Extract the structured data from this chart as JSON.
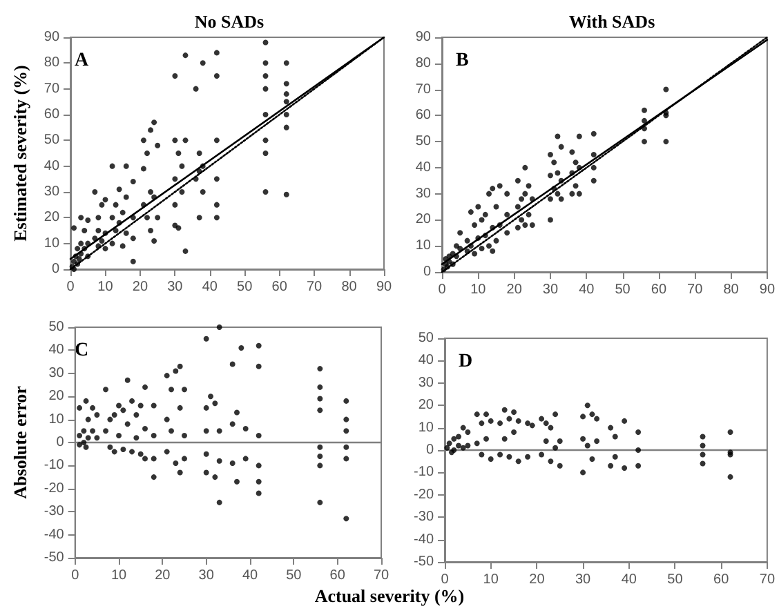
{
  "chart_data": [
    {
      "type": "scatter",
      "title": "No SADs",
      "ylabel": "Estimated severity (%)",
      "annotations": [
        "A"
      ],
      "xlim": [
        0,
        90
      ],
      "ylim": [
        0,
        90
      ],
      "xticks": [
        0,
        10,
        20,
        30,
        40,
        50,
        60,
        70,
        80,
        90
      ],
      "yticks": [
        0,
        10,
        20,
        30,
        40,
        50,
        60,
        70,
        80,
        90
      ],
      "grid": false,
      "marker": "circle",
      "series": [
        {
          "color": "#000000",
          "x": [
            0.5,
            1,
            1,
            1.5,
            2,
            2,
            2.5,
            3,
            3,
            3,
            1,
            4,
            4,
            5,
            5,
            5,
            7,
            7,
            8,
            8,
            8,
            9,
            9,
            10,
            10,
            10,
            12,
            12,
            12,
            13,
            13,
            14,
            14,
            15,
            15,
            16,
            16,
            16,
            18,
            18,
            18,
            18,
            21,
            21,
            21,
            22,
            22,
            23,
            23,
            23,
            24,
            24,
            24,
            25,
            25,
            30,
            30,
            30,
            30,
            30,
            31,
            31,
            32,
            32,
            33,
            33,
            33,
            36,
            36,
            37,
            37,
            37,
            38,
            38,
            38,
            42,
            42,
            42,
            42,
            42,
            42,
            56,
            56,
            56,
            56,
            56,
            56,
            56,
            56,
            62,
            62,
            62,
            62,
            62,
            62,
            62
          ],
          "values": [
            1,
            3,
            0,
            5,
            2,
            8,
            4,
            10,
            6,
            20,
            16,
            8,
            15,
            10,
            5,
            19,
            12,
            30,
            9,
            15,
            20,
            11,
            25,
            14,
            8,
            27,
            20,
            40,
            10,
            15,
            25,
            18,
            31,
            9,
            22,
            40,
            28,
            14,
            3,
            20,
            34,
            12,
            50,
            25,
            39,
            45,
            20,
            30,
            54,
            15,
            57,
            11,
            28,
            48,
            20,
            75,
            50,
            35,
            25,
            17,
            45,
            16,
            30,
            40,
            83,
            7,
            50,
            70,
            35,
            45,
            20,
            38,
            80,
            30,
            40,
            84,
            75,
            50,
            20,
            35,
            25,
            88,
            80,
            75,
            70,
            60,
            50,
            45,
            30,
            80,
            72,
            68,
            65,
            60,
            55,
            29
          ]
        },
        {
          "type": "line",
          "color": "#000000",
          "line_style": "solid",
          "marker": "none",
          "x": [
            0,
            90
          ],
          "values": [
            4,
            90
          ]
        },
        {
          "type": "line",
          "color": "#000000",
          "line_style": "dotted",
          "marker": "none",
          "x": [
            0,
            90
          ],
          "values": [
            0,
            90
          ]
        }
      ]
    },
    {
      "type": "scatter",
      "title": "With SADs",
      "annotations": [
        "B"
      ],
      "xlim": [
        0,
        90
      ],
      "ylim": [
        0,
        90
      ],
      "xticks": [
        0,
        10,
        20,
        30,
        40,
        50,
        60,
        70,
        80,
        90
      ],
      "yticks": [
        0,
        10,
        20,
        30,
        40,
        50,
        60,
        70,
        80,
        90
      ],
      "grid": false,
      "marker": "circle",
      "series": [
        {
          "color": "#000000",
          "x": [
            0.5,
            1,
            1,
            1.5,
            2,
            2,
            3,
            3,
            4,
            4,
            5,
            5,
            7,
            7,
            8,
            8,
            9,
            9,
            10,
            10,
            11,
            11,
            12,
            12,
            13,
            13,
            14,
            14,
            14,
            15,
            15,
            16,
            16,
            18,
            18,
            18,
            21,
            21,
            21,
            22,
            22,
            23,
            23,
            23,
            24,
            24,
            25,
            25,
            30,
            30,
            30,
            30,
            31,
            31,
            32,
            32,
            32,
            33,
            33,
            33,
            36,
            36,
            36,
            37,
            37,
            38,
            38,
            38,
            42,
            42,
            42,
            42,
            56,
            56,
            56,
            56,
            62,
            62,
            62,
            62
          ],
          "values": [
            1,
            3,
            5,
            2,
            6,
            4,
            7,
            3,
            10,
            6,
            15,
            9,
            12,
            8,
            23,
            10,
            18,
            7,
            25,
            13,
            20,
            9,
            22,
            14,
            30,
            10,
            32,
            17,
            8,
            25,
            12,
            33,
            18,
            30,
            15,
            22,
            35,
            25,
            17,
            28,
            20,
            40,
            30,
            18,
            33,
            22,
            28,
            18,
            45,
            37,
            28,
            20,
            42,
            32,
            52,
            38,
            30,
            48,
            35,
            28,
            46,
            38,
            30,
            42,
            33,
            52,
            40,
            30,
            53,
            45,
            40,
            35,
            62,
            58,
            55,
            50,
            70,
            61,
            60,
            50
          ]
        },
        {
          "type": "line",
          "color": "#000000",
          "line_style": "solid",
          "marker": "none",
          "x": [
            0,
            90
          ],
          "values": [
            3,
            89
          ]
        },
        {
          "type": "line",
          "color": "#000000",
          "line_style": "dotted",
          "marker": "none",
          "x": [
            0,
            90
          ],
          "values": [
            0,
            90
          ]
        }
      ]
    },
    {
      "type": "scatter",
      "ylabel": "Absolute error",
      "xlabel": "Actual severity (%)",
      "annotations": [
        "C"
      ],
      "xlim": [
        0,
        70
      ],
      "ylim": [
        -50,
        50
      ],
      "xticks": [
        0,
        10,
        20,
        30,
        40,
        50,
        60,
        70
      ],
      "yticks": [
        -50,
        -40,
        -30,
        -20,
        -10,
        0,
        10,
        20,
        30,
        40,
        50
      ],
      "grid": false,
      "marker": "circle",
      "ref_lines": [
        {
          "axis": "y",
          "value": 0,
          "color": "#808080"
        }
      ],
      "series": [
        {
          "color": "#000000",
          "x": [
            1,
            1,
            1,
            2,
            2,
            2.5,
            2.5,
            3,
            3,
            4,
            4,
            5,
            5,
            7,
            7,
            8,
            8,
            9,
            9,
            10,
            10,
            11,
            11,
            12,
            12,
            13,
            13,
            14,
            14,
            15,
            15,
            16,
            16,
            16,
            18,
            18,
            18,
            18,
            21,
            21,
            21,
            22,
            22,
            23,
            23,
            24,
            24,
            24,
            25,
            25,
            25,
            30,
            30,
            30,
            30,
            30,
            31,
            32,
            32,
            33,
            33,
            33,
            33,
            36,
            36,
            36,
            37,
            37,
            38,
            39,
            39,
            42,
            42,
            42,
            42,
            42,
            42,
            56,
            56,
            56,
            56,
            56,
            56,
            56,
            56,
            62,
            62,
            62,
            62,
            62,
            62
          ],
          "values": [
            15,
            3,
            -1,
            5,
            0,
            18,
            -2,
            10,
            2,
            15,
            5,
            12,
            2,
            23,
            5,
            10,
            -2,
            12,
            -4,
            16,
            3,
            14,
            -3,
            27,
            8,
            18,
            -4,
            12,
            2,
            16,
            -5,
            24,
            6,
            -7,
            16,
            -15,
            -7,
            3,
            29,
            10,
            -4,
            23,
            5,
            31,
            -9,
            33,
            -13,
            15,
            23,
            -7,
            3,
            45,
            15,
            -13,
            -5,
            5,
            20,
            17,
            -15,
            50,
            -26,
            -8,
            5,
            34,
            -9,
            8,
            13,
            -17,
            41,
            -7,
            6,
            42,
            33,
            3,
            -10,
            -17,
            -22,
            32,
            24,
            19,
            14,
            -2,
            -6,
            -10,
            -26,
            18,
            10,
            5,
            -2,
            -7,
            -33
          ]
        }
      ]
    },
    {
      "type": "scatter",
      "annotations": [
        "D"
      ],
      "xlim": [
        0,
        70
      ],
      "ylim": [
        -50,
        50
      ],
      "xticks": [
        0,
        10,
        20,
        30,
        40,
        50,
        60,
        70
      ],
      "yticks": [
        -50,
        -40,
        -30,
        -20,
        -10,
        0,
        10,
        20,
        30,
        40,
        50
      ],
      "grid": false,
      "marker": "circle",
      "ref_lines": [
        {
          "axis": "y",
          "value": 0,
          "color": "#808080"
        }
      ],
      "series": [
        {
          "color": "#000000",
          "x": [
            0.5,
            1,
            1.5,
            2,
            2,
            3,
            3,
            4,
            4,
            5,
            5,
            7,
            7,
            8,
            8,
            9,
            9,
            10,
            10,
            12,
            12,
            13,
            13,
            14,
            14,
            15,
            15,
            16,
            16,
            18,
            18,
            19,
            21,
            21,
            22,
            22,
            23,
            23,
            24,
            24,
            25,
            25,
            30,
            30,
            30,
            31,
            31,
            32,
            32,
            33,
            33,
            36,
            36,
            37,
            37,
            39,
            39,
            42,
            42,
            42,
            56,
            56,
            56,
            56,
            62,
            62,
            62,
            62
          ],
          "values": [
            1,
            3,
            -1,
            5,
            0,
            6,
            2,
            10,
            1,
            8,
            2,
            16,
            3,
            12,
            -2,
            16,
            5,
            13,
            -4,
            12,
            -2,
            18,
            5,
            14,
            -3,
            17,
            8,
            13,
            -5,
            12,
            -3,
            11,
            14,
            -2,
            12,
            4,
            10,
            -5,
            16,
            1,
            4,
            -7,
            15,
            5,
            -10,
            20,
            2,
            16,
            -4,
            14,
            4,
            10,
            -7,
            6,
            -3,
            13,
            -8,
            8,
            0,
            -7,
            6,
            2,
            -2,
            -6,
            8,
            -1,
            -2,
            -12
          ]
        }
      ]
    }
  ]
}
